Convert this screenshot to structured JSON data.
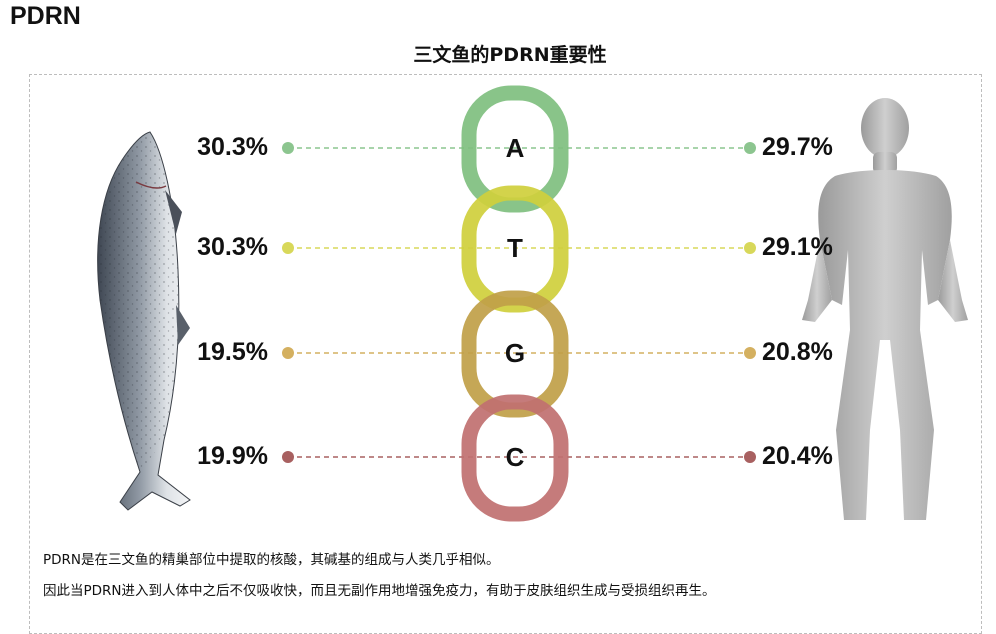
{
  "corner_title": "PDRN",
  "title": "三文鱼的PDRN重要性",
  "bases": [
    {
      "letter": "A",
      "salmon": "30.3%",
      "human": "29.7%",
      "dot_color": "#8cc58f",
      "ring_color": "#7fbf7f"
    },
    {
      "letter": "T",
      "salmon": "30.3%",
      "human": "29.1%",
      "dot_color": "#d8d85a",
      "ring_color": "#cfcf3c"
    },
    {
      "letter": "G",
      "salmon": "19.5%",
      "human": "20.8%",
      "dot_color": "#d4b060",
      "ring_color": "#c0a048"
    },
    {
      "letter": "C",
      "salmon": "19.9%",
      "human": "20.4%",
      "dot_color": "#a86060",
      "ring_color": "#c07070"
    }
  ],
  "captions": [
    "PDRN是在三文鱼的精巢部位中提取的核酸，其碱基的组成与人类几乎相似。",
    "因此当PDRN进入到人体中之后不仅吸收快，而且无副作用地增强免疫力，有助于皮肤组织生成与受损组织再生。"
  ]
}
